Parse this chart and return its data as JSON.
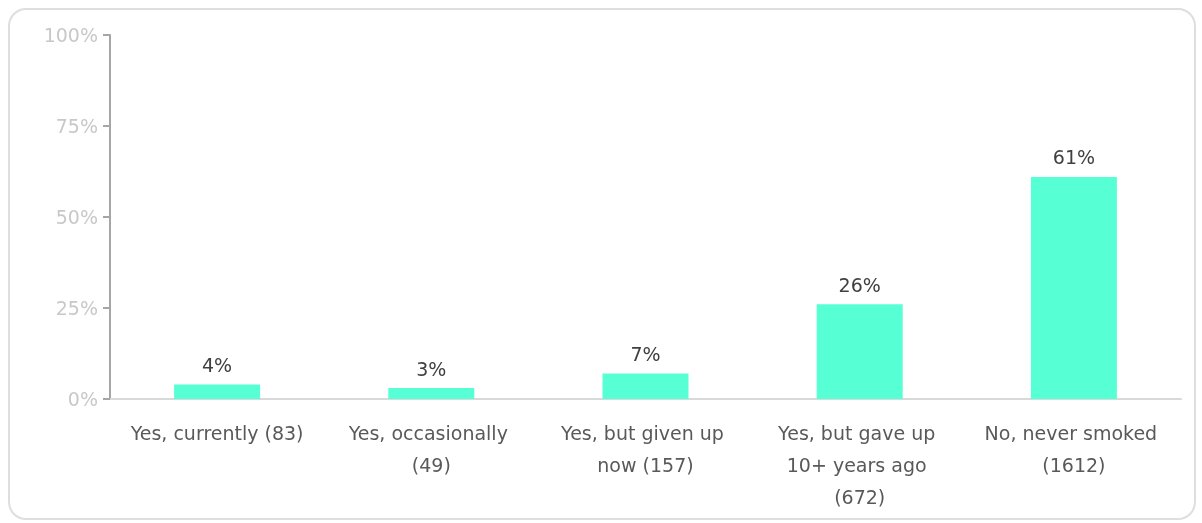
{
  "chart_data": {
    "type": "bar",
    "categories": [
      "Yes, currently (83)",
      "Yes, occasionally (49)",
      "Yes, but given up now (157)",
      "Yes, but gave up 10+ years ago (672)",
      "No, never smoked (1612)"
    ],
    "values": [
      4,
      3,
      7,
      26,
      61
    ],
    "color": "#57ffd4",
    "value_labels": [
      "4%",
      "3%",
      "7%",
      "26%",
      "61%"
    ],
    "ylim": [
      0,
      100
    ],
    "yticks": [
      {
        "value": 0,
        "label": "0%"
      },
      {
        "value": 25,
        "label": "25%"
      },
      {
        "value": 50,
        "label": "50%"
      },
      {
        "value": 75,
        "label": "75%"
      },
      {
        "value": 100,
        "label": "100%"
      }
    ]
  }
}
